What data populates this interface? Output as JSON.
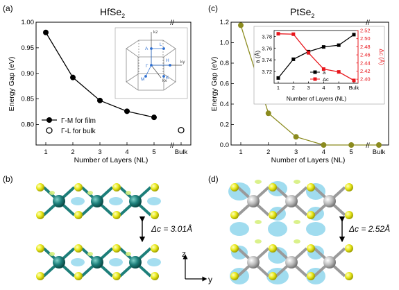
{
  "panels": {
    "a": {
      "letter": "(a)",
      "title": "HfSe",
      "title_sub": "2"
    },
    "b": {
      "letter": "(b)",
      "delta_label": "Δc = 3.01Å"
    },
    "c": {
      "letter": "(c)",
      "title": "PtSe",
      "title_sub": "2"
    },
    "d": {
      "letter": "(d)",
      "delta_label": "Δc = 2.52Å"
    }
  },
  "bz_labels": [
    "kz",
    "ky",
    "kx",
    "A",
    "L",
    "H",
    "Γ",
    "K",
    "M"
  ],
  "axes_icon": {
    "z": "z",
    "y": "y"
  },
  "colors": {
    "hf_series": "#000000",
    "pt_series": "#8b8b1e",
    "inset_a": "#000000",
    "inset_dc": "#e8151b",
    "hf_atom": "#1d7f7a",
    "pt_atom": "#b8b8b8",
    "se_atom": "#e8e81a",
    "charge_blue": "#8fd6ec",
    "charge_green": "#d6ef7e"
  },
  "chart_data": [
    {
      "type": "line",
      "panel": "a",
      "title": "HfSe2",
      "xlabel": "Number of Layers (NL)",
      "ylabel": "Energy Gap (eV)",
      "x_ticks": [
        "1",
        "2",
        "3",
        "4",
        "5",
        "Bulk"
      ],
      "ylim": [
        0.76,
        1.0
      ],
      "y_ticks": [
        "0.80",
        "0.85",
        "0.90",
        "0.95",
        "1.00"
      ],
      "axis_break": "//",
      "series": [
        {
          "name": "Γ-M for film",
          "marker": "filled-circle",
          "x": [
            1,
            2,
            3,
            4,
            5
          ],
          "values": [
            0.98,
            0.892,
            0.847,
            0.826,
            0.814
          ]
        },
        {
          "name": "Γ-L for bulk",
          "marker": "open-circle",
          "x": [
            "Bulk"
          ],
          "values": [
            0.789
          ]
        }
      ],
      "legend_position": "lower-left",
      "grid": false
    },
    {
      "type": "line",
      "panel": "c",
      "title": "PtSe2",
      "xlabel": "Number of Layers (NL)",
      "ylabel": "Energy Gap (eV)",
      "x_ticks": [
        "1",
        "2",
        "3",
        "4",
        "5",
        "Bulk"
      ],
      "ylim": [
        0.0,
        1.2
      ],
      "y_ticks": [
        "0.0",
        "0.2",
        "0.4",
        "0.6",
        "0.8",
        "1.0",
        "1.2"
      ],
      "axis_break": "//",
      "series": [
        {
          "x": [
            1,
            2,
            3,
            4,
            5,
            "Bulk"
          ],
          "values": [
            1.17,
            0.31,
            0.08,
            0.0,
            0.0,
            0.0
          ]
        }
      ],
      "grid": false
    },
    {
      "type": "line",
      "panel": "c-inset",
      "xlabel": "Number of Layers (NL)",
      "ylabel": "a (Å)",
      "ylabel_right": "Δc (Å)",
      "x_ticks": [
        "1",
        "2",
        "3",
        "4",
        "5",
        "Bulk"
      ],
      "ylim": [
        3.7,
        3.79
      ],
      "ylim_right": [
        2.39,
        2.52
      ],
      "y_ticks": [
        "3.72",
        "3.74",
        "3.76",
        "3.78"
      ],
      "y_ticks_right": [
        "2.40",
        "2.42",
        "2.44",
        "2.46",
        "2.48",
        "2.50",
        "2.52"
      ],
      "series": [
        {
          "name": "a",
          "axis": "left",
          "marker": "filled-square",
          "x": [
            1,
            2,
            3,
            4,
            5,
            "Bulk"
          ],
          "values": [
            3.709,
            3.741,
            3.754,
            3.762,
            3.765,
            3.783
          ]
        },
        {
          "name": "Δc",
          "axis": "right",
          "marker": "filled-square",
          "x": [
            1,
            2,
            3,
            4,
            5,
            "Bulk"
          ],
          "values": [
            2.512,
            2.511,
            2.465,
            2.425,
            2.418,
            2.397
          ]
        }
      ],
      "legend_position": "lower-center"
    }
  ]
}
